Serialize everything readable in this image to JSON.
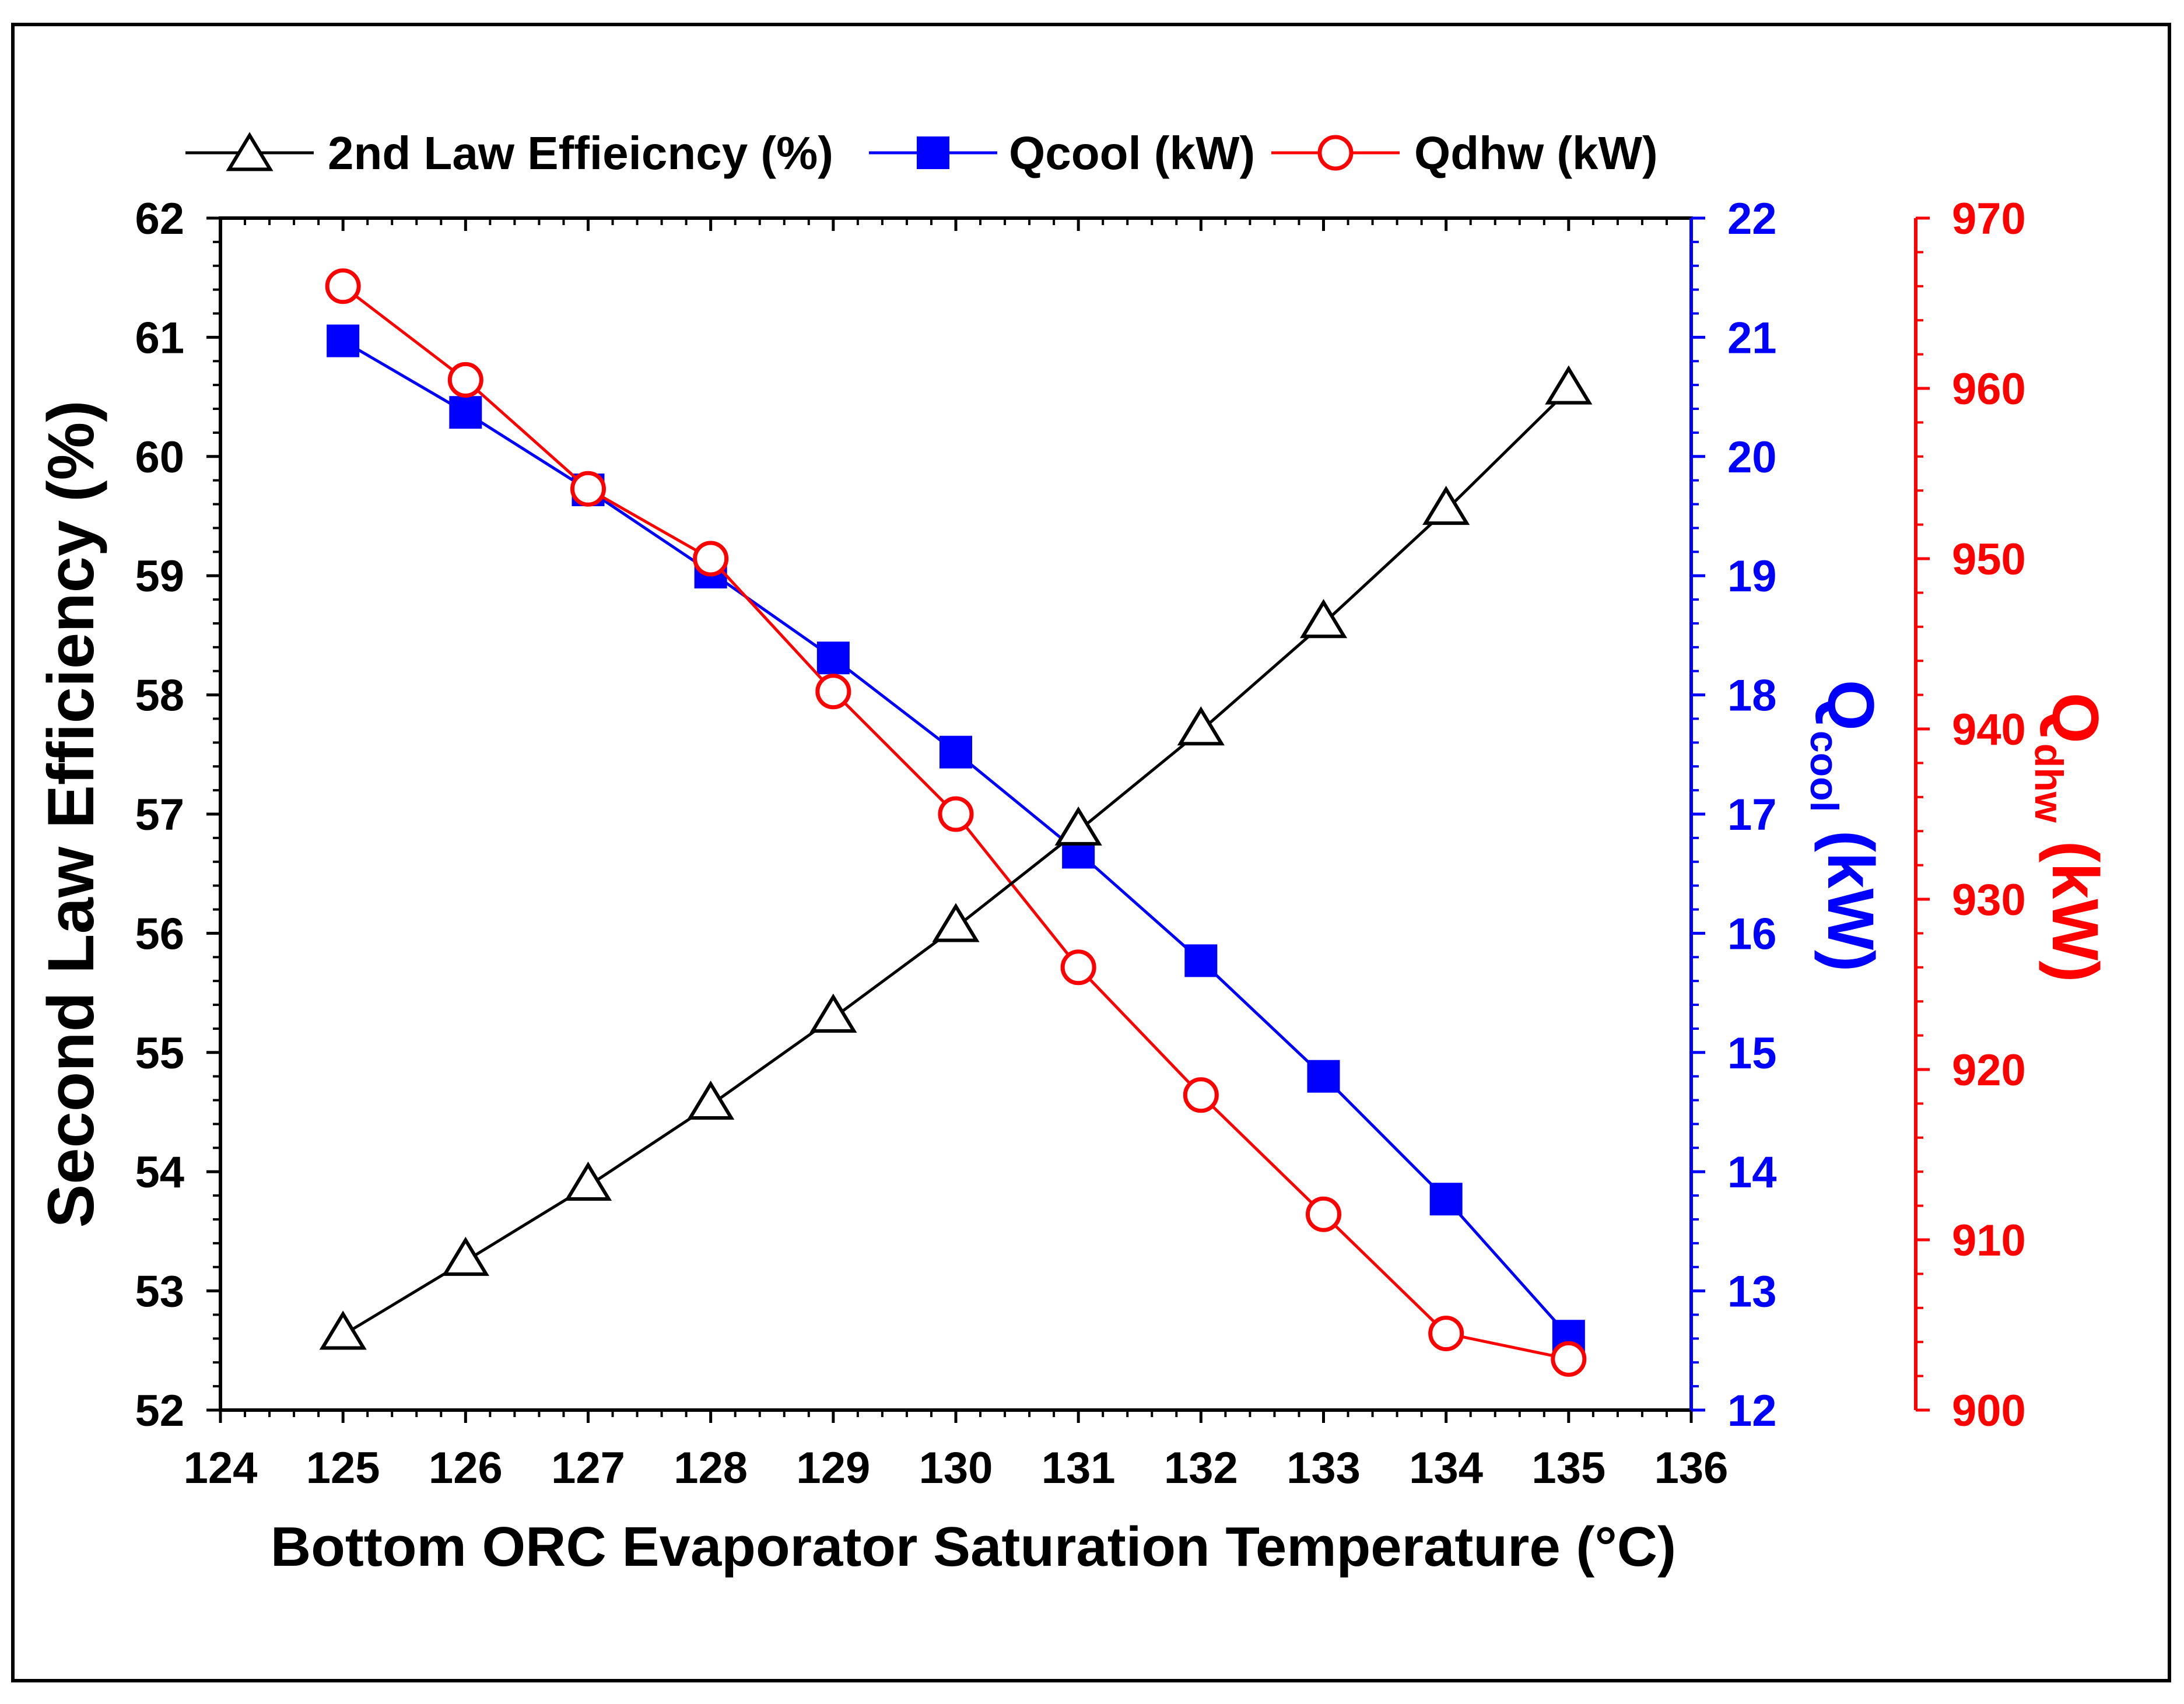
{
  "chart_data": {
    "type": "line",
    "x": [
      125,
      126,
      127,
      128,
      129,
      130,
      131,
      132,
      133,
      134,
      135
    ],
    "xlabel": "Bottom ORC Evaporator Saturation Temperature (°C)",
    "xlim": [
      124,
      136
    ],
    "xticks": [
      "124",
      "125",
      "126",
      "127",
      "128",
      "129",
      "130",
      "131",
      "132",
      "133",
      "134",
      "135",
      "136"
    ],
    "axes": {
      "left": {
        "label": "Second Law Efficiency (%)",
        "ylim": [
          52,
          62
        ],
        "ticks": [
          "52",
          "53",
          "54",
          "55",
          "56",
          "57",
          "58",
          "59",
          "60",
          "61",
          "62"
        ],
        "color": "#000000"
      },
      "right1": {
        "label_main": "Q",
        "label_sub": "cool",
        "label_unit": " (kW)",
        "ylim": [
          12,
          22
        ],
        "ticks": [
          "12",
          "13",
          "14",
          "15",
          "16",
          "17",
          "18",
          "19",
          "20",
          "21",
          "22"
        ],
        "color": "#0000ff"
      },
      "right2": {
        "label_main": "Q",
        "label_sub": "dhw",
        "label_unit": " (kW)",
        "ylim": [
          900,
          970
        ],
        "ticks": [
          "900",
          "910",
          "920",
          "930",
          "940",
          "950",
          "960",
          "970"
        ],
        "color": "#ff0000"
      }
    },
    "series": [
      {
        "name": "2nd Law Effieicncy (%)",
        "axis": "left",
        "marker": "open-triangle",
        "color": "#000000",
        "values": [
          52.63,
          53.25,
          53.88,
          54.56,
          55.29,
          56.05,
          56.86,
          57.7,
          58.6,
          59.55,
          60.56
        ]
      },
      {
        "name": "Qcool (kW)",
        "axis": "right1",
        "marker": "filled-square",
        "color": "#0000ff",
        "values": [
          20.97,
          20.37,
          19.72,
          19.03,
          18.31,
          17.52,
          16.68,
          15.77,
          14.8,
          13.77,
          12.62
        ]
      },
      {
        "name": "Qdhw (kW)",
        "axis": "right2",
        "marker": "open-circle",
        "color": "#ff0000",
        "values": [
          966.0,
          960.5,
          954.1,
          950.0,
          942.2,
          935.0,
          926.0,
          918.5,
          911.5,
          904.5,
          903.0
        ]
      }
    ]
  }
}
